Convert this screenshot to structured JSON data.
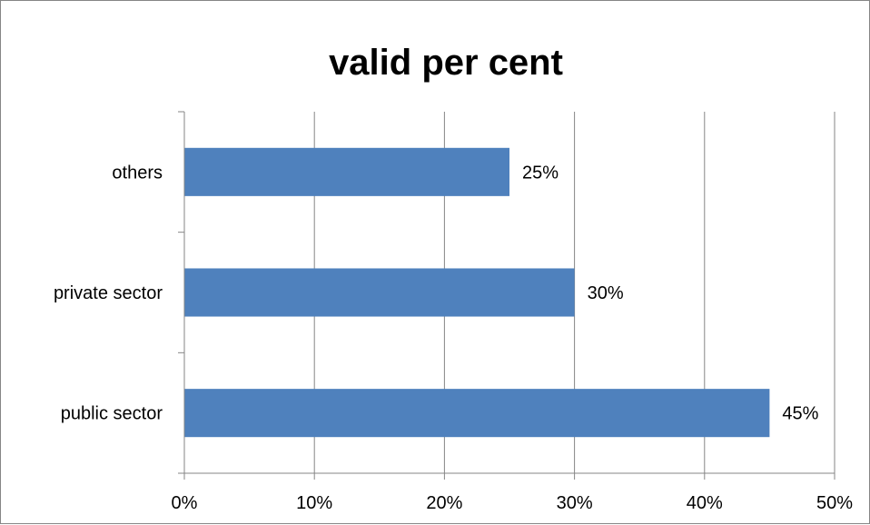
{
  "chart_data": {
    "type": "bar",
    "orientation": "horizontal",
    "title": "valid per cent",
    "categories": [
      "public sector",
      "private sector",
      "others"
    ],
    "values": [
      45,
      30,
      25
    ],
    "data_labels": [
      "45%",
      "30%",
      "25%"
    ],
    "x_ticks": [
      "0%",
      "10%",
      "20%",
      "30%",
      "40%",
      "50%"
    ],
    "xlim": [
      0,
      50
    ],
    "xlabel": "",
    "ylabel": "",
    "grid": true,
    "legend": "none",
    "bar_color": "#4f81bd"
  }
}
